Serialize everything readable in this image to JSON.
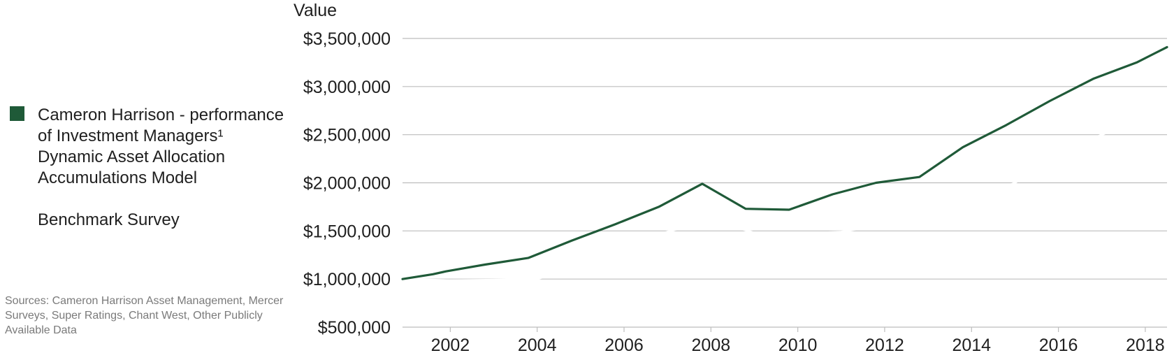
{
  "legend": {
    "items": [
      {
        "label": "Cameron Harrison - performance of Investment Managers¹ Dynamic Asset Allocation Accumulations Model",
        "color": "#1f5a38"
      },
      {
        "label": "Benchmark Survey",
        "color": "#ffffff"
      }
    ]
  },
  "sources": "Sources: Cameron Harrison Asset Management, Mercer Surveys, Super Ratings, Chant West, Other Publicly Available  Data",
  "chart_data": {
    "type": "line",
    "ylabel": "Value",
    "y_ticks": [
      500000,
      1000000,
      1500000,
      2000000,
      2500000,
      3000000,
      3500000
    ],
    "y_tick_labels": [
      "$500,000",
      "$1,000,000",
      "$1,500,000",
      "$2,000,000",
      "$2,500,000",
      "$3,000,000",
      "$3,500,000"
    ],
    "x_ticks": [
      2002,
      2004,
      2006,
      2008,
      2010,
      2012,
      2014,
      2016,
      2018
    ],
    "x_tick_labels": [
      "2002",
      "2004",
      "2006",
      "2008",
      "2010",
      "2012",
      "2014",
      "2016",
      "2018"
    ],
    "xlim": [
      2000.9,
      2018.5
    ],
    "ylim": [
      500000,
      3500000
    ],
    "grid": true,
    "series": [
      {
        "name": "Cameron Harrison - performance of Investment Managers¹ Dynamic Asset Allocation Accumulations Model",
        "color": "#1f5a38",
        "x": [
          2000.9,
          2001.6,
          2001.9,
          2002.8,
          2003.8,
          2004.8,
          2005.8,
          2006.8,
          2007.8,
          2008.8,
          2009.8,
          2010.8,
          2011.8,
          2012.8,
          2013.8,
          2014.8,
          2015.8,
          2016.8,
          2017.8,
          2018.5
        ],
        "y": [
          1000000,
          1050000,
          1080000,
          1150000,
          1220000,
          1400000,
          1570000,
          1750000,
          1990000,
          1730000,
          1720000,
          1880000,
          2000000,
          2060000,
          2370000,
          2600000,
          2850000,
          3080000,
          3250000,
          3410000
        ]
      },
      {
        "name": "Benchmark Survey",
        "color": "#ffffff",
        "x": [
          2000.9,
          2002.0,
          2003.0,
          2004.0,
          2005.0,
          2006.0,
          2007.0,
          2008.0,
          2009.0,
          2010.0,
          2011.0,
          2012.0,
          2013.0,
          2014.0,
          2015.0,
          2016.0,
          2017.0,
          2018.0,
          2018.5
        ],
        "y": [
          1000000,
          985000,
          990000,
          1000000,
          1150000,
          1350000,
          1490000,
          1620000,
          1480000,
          1470000,
          1490000,
          1570000,
          1620000,
          1800000,
          2000000,
          2300000,
          2500000,
          2700000,
          2800000
        ]
      }
    ]
  }
}
